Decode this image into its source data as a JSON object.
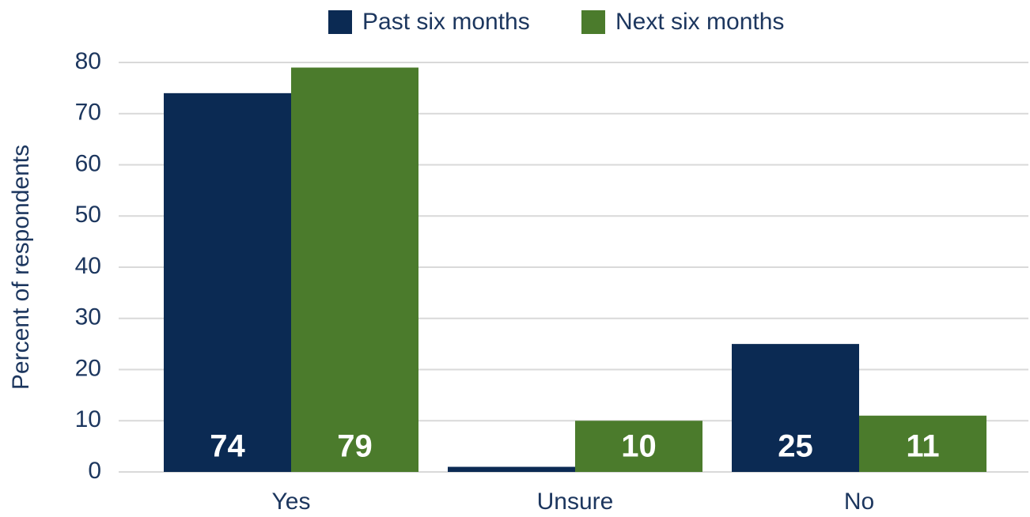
{
  "chart_data": {
    "type": "bar",
    "y_label": "Percent of respondents",
    "categories": [
      "Yes",
      "Unsure",
      "No"
    ],
    "series": [
      {
        "name": "Past six months",
        "color": "#0b2a53",
        "values": [
          74,
          1,
          25
        ]
      },
      {
        "name": "Next six months",
        "color": "#4b7b2c",
        "values": [
          79,
          10,
          11
        ]
      }
    ],
    "ylim": [
      0,
      80
    ],
    "yticks": [
      0,
      10,
      20,
      30,
      40,
      50,
      60,
      70,
      80
    ],
    "grid": true,
    "legend": "top"
  }
}
